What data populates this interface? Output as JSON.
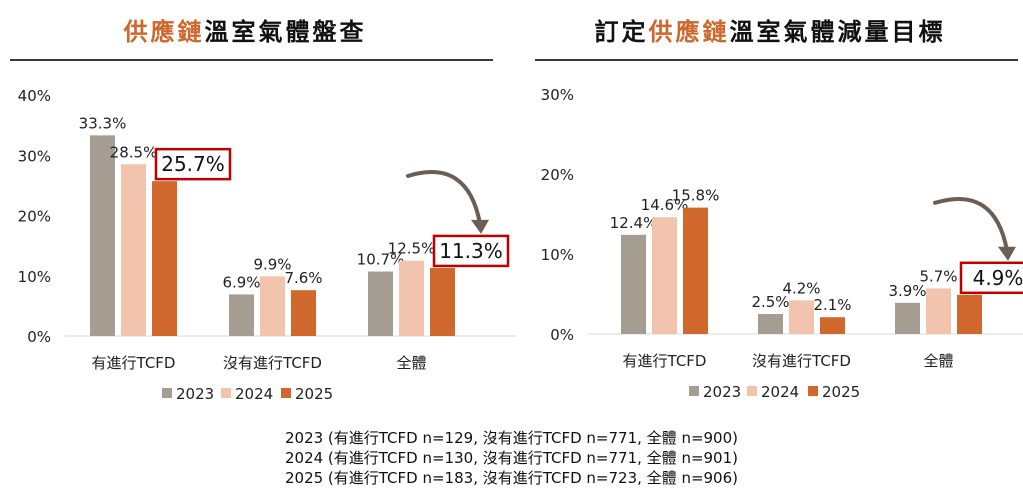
{
  "colors": {
    "2023": "#a59d92",
    "2024": "#f2c4ae",
    "2025": "#d0672c",
    "highlight": "#c00000",
    "arrow": "#6b5f55"
  },
  "panels": [
    {
      "title_highlight": "供應鏈",
      "title_prefix": "",
      "title_suffix": "溫室氣體盤查"
    },
    {
      "title_highlight": "供應鏈",
      "title_prefix": "訂定",
      "title_suffix": "溫室氣體減量目標"
    }
  ],
  "chart_data": [
    {
      "type": "bar",
      "title": "供應鏈溫室氣體盤查",
      "categories": [
        "有進行TCFD",
        "沒有進行TCFD",
        "全體"
      ],
      "series": [
        {
          "name": "2023",
          "values": [
            33.3,
            6.9,
            10.7
          ],
          "labels": [
            "33.3%",
            "6.9%",
            "10.7%"
          ]
        },
        {
          "name": "2024",
          "values": [
            28.5,
            9.9,
            12.5
          ],
          "labels": [
            "28.5%",
            "9.9%",
            "12.5%"
          ]
        },
        {
          "name": "2025",
          "values": [
            25.7,
            7.6,
            11.3
          ],
          "labels": [
            "25.7%",
            "7.6%",
            "11.3%"
          ]
        }
      ],
      "highlighted": [
        "25.7%",
        "11.3%"
      ],
      "ylim": [
        0,
        40
      ],
      "yticks": [
        "0%",
        "10%",
        "20%",
        "30%",
        "40%"
      ],
      "legend_position": "bottom",
      "grid": false
    },
    {
      "type": "bar",
      "title": "訂定供應鏈溫室氣體減量目標",
      "categories": [
        "有進行TCFD",
        "沒有進行TCFD",
        "全體"
      ],
      "series": [
        {
          "name": "2023",
          "values": [
            12.4,
            2.5,
            3.9
          ],
          "labels": [
            "12.4%",
            "2.5%",
            "3.9%"
          ]
        },
        {
          "name": "2024",
          "values": [
            14.6,
            4.2,
            5.7
          ],
          "labels": [
            "14.6%",
            "4.2%",
            "5.7%"
          ]
        },
        {
          "name": "2025",
          "values": [
            15.8,
            2.1,
            4.9
          ],
          "labels": [
            "15.8%",
            "2.1%",
            "4.9%"
          ]
        }
      ],
      "highlighted": [
        "4.9%"
      ],
      "ylim": [
        0,
        30
      ],
      "yticks": [
        "0%",
        "10%",
        "20%",
        "30%"
      ],
      "legend_position": "bottom",
      "grid": false
    }
  ],
  "notes": [
    "2023 (有進行TCFD n=129, 沒有進行TCFD n=771, 全體 n=900)",
    "2024 (有進行TCFD n=130, 沒有進行TCFD n=771, 全體 n=901)",
    "2025 (有進行TCFD n=183, 沒有進行TCFD n=723, 全體 n=906)"
  ]
}
